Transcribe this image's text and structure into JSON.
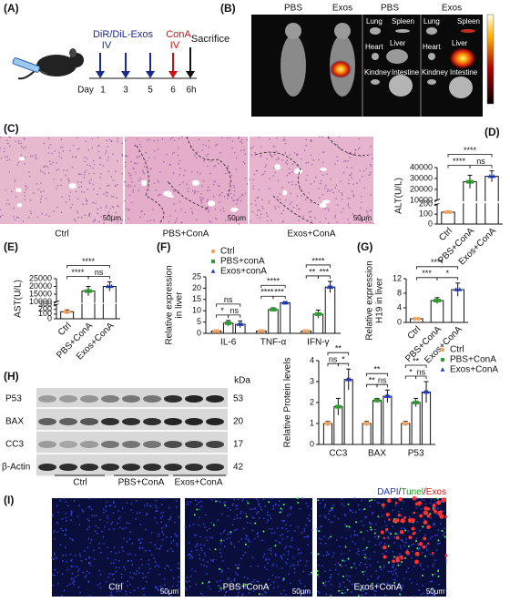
{
  "panels": {
    "A": {
      "label": "(A)",
      "treatment": "DiR/DiL-Exos",
      "route1": "IV",
      "drug": "ConA",
      "route2": "IV",
      "end": "Sacrifice",
      "day_label": "Day",
      "days": [
        "1",
        "3",
        "5",
        "6",
        "6h"
      ]
    },
    "B": {
      "label": "(B)",
      "columns": [
        "PBS",
        "Exos",
        "PBS",
        "Exos"
      ],
      "organs": [
        "Lung",
        "Spleen",
        "Heart",
        "Liver",
        "Kindney",
        "Intestine"
      ]
    },
    "C": {
      "label": "(C)",
      "images": [
        "Ctrl",
        "PBS+ConA",
        "Exos+ConA"
      ],
      "scale_bar": "50μm"
    },
    "D": {
      "label": "(D)"
    },
    "E": {
      "label": "(E)"
    },
    "F": {
      "label": "(F)"
    },
    "G": {
      "label": "(G)"
    },
    "H": {
      "label": "(H)",
      "unit": "kDa",
      "proteins": [
        {
          "name": "P53",
          "kda": 53
        },
        {
          "name": "BAX",
          "kda": 20
        },
        {
          "name": "CC3",
          "kda": 17
        },
        {
          "name": "β-Actin",
          "kda": 42
        }
      ],
      "groups": [
        "Ctrl",
        "PBS+ConA",
        "Exos+ConA"
      ]
    },
    "I": {
      "label": "(I)",
      "stain": [
        "DAPI",
        "/",
        "Tunel",
        "/",
        "Exos"
      ],
      "images": [
        "Ctrl",
        "PBS+ConA",
        "Exos+ConA"
      ],
      "scale_bar": "50μm"
    }
  },
  "chart_data": [
    {
      "type": "bar",
      "ylabel": [
        "ALT(U/L)"
      ],
      "categories": [
        "Ctrl",
        "PBS+ConA",
        "Exos+ConA"
      ],
      "values": [
        120,
        27000,
        32000
      ],
      "errors": [
        10,
        6000,
        5000
      ],
      "colors": [
        "#f4a460",
        "#2e9e2e",
        "#1e3cc8"
      ],
      "markers": [
        "circle",
        "square",
        "triangle"
      ],
      "ylim": [
        0,
        40000
      ],
      "ybreak": [
        200,
        10000
      ],
      "yticks": [
        0,
        100,
        200,
        10000,
        20000,
        30000,
        40000
      ],
      "annotations": [
        "****",
        "****",
        "ns"
      ]
    },
    {
      "type": "bar",
      "ylabel": [
        "AST(U/L)"
      ],
      "categories": [
        "Ctrl",
        "PBS+ConA",
        "Exos+ConA"
      ],
      "values": [
        150,
        17000,
        20000
      ],
      "errors": [
        40,
        3000,
        3000
      ],
      "colors": [
        "#f4a460",
        "#2e9e2e",
        "#1e3cc8"
      ],
      "markers": [
        "circle",
        "square",
        "triangle"
      ],
      "ylim": [
        0,
        25000
      ],
      "ybreak": [
        300,
        10000
      ],
      "yticks": [
        0,
        100,
        200,
        300,
        10000,
        15000,
        20000,
        25000
      ],
      "annotations": [
        "****",
        "****",
        "ns"
      ]
    },
    {
      "type": "grouped-bar",
      "ylabel": [
        "Relative expression",
        "in liver"
      ],
      "categories": [
        "IL-6",
        "TNF-α",
        "IFN-γ"
      ],
      "series": [
        {
          "name": "Ctrl",
          "color": "#f4a460",
          "marker": "circle",
          "values": [
            1,
            1,
            1
          ],
          "errors": [
            0.2,
            0.2,
            0.2
          ]
        },
        {
          "name": "PBS+conA",
          "color": "#2e9e2e",
          "marker": "square",
          "values": [
            4.5,
            10.5,
            8.5
          ],
          "errors": [
            1.2,
            0.8,
            1.8
          ]
        },
        {
          "name": "Exos+conA",
          "color": "#1e3cc8",
          "marker": "triangle",
          "values": [
            4,
            13.5,
            20.5
          ],
          "errors": [
            1.5,
            0.5,
            2.5
          ]
        }
      ],
      "ylim": [
        0,
        25
      ],
      "yticks": [
        0,
        5,
        10,
        15,
        20,
        25
      ],
      "legend": "upper-left",
      "annotations": [
        [
          "ns",
          "*",
          "ns"
        ],
        [
          "****",
          "****",
          "***"
        ],
        [
          "****",
          "**",
          "***"
        ]
      ]
    },
    {
      "type": "bar",
      "ylabel": [
        "Relative expression",
        "H19 in liver"
      ],
      "categories": [
        "Ctrl",
        "PBS+ConA",
        "Exos+ConA"
      ],
      "values": [
        1,
        6,
        9
      ],
      "errors": [
        0.1,
        0.8,
        1.8
      ],
      "colors": [
        "#f4a460",
        "#2e9e2e",
        "#1e3cc8"
      ],
      "markers": [
        "circle",
        "square",
        "triangle"
      ],
      "ylim": [
        0,
        12
      ],
      "yticks": [
        0,
        4,
        8,
        12
      ],
      "annotations": [
        "****",
        "***",
        "*"
      ]
    },
    {
      "type": "grouped-bar",
      "ylabel": [
        "Relative Protein levels"
      ],
      "categories": [
        "CC3",
        "BAX",
        "P53"
      ],
      "series": [
        {
          "name": "Ctrl",
          "color": "#f4a460",
          "marker": "circle",
          "values": [
            1,
            1,
            1
          ],
          "errors": [
            0.1,
            0.1,
            0.1
          ]
        },
        {
          "name": "PBS+ConA",
          "color": "#2e9e2e",
          "marker": "square",
          "values": [
            1.8,
            2.1,
            2
          ],
          "errors": [
            0.4,
            0.1,
            0.2
          ]
        },
        {
          "name": "Exos+ConA",
          "color": "#1e3cc8",
          "marker": "triangle",
          "values": [
            3.1,
            2.3,
            2.5
          ],
          "errors": [
            0.5,
            0.3,
            0.5
          ]
        }
      ],
      "ylim": [
        0,
        4
      ],
      "yticks": [
        0,
        1,
        2,
        3,
        4
      ],
      "legend": "upper-right",
      "annotations": [
        [
          "**",
          "ns",
          "*"
        ],
        [
          "**",
          "**",
          "ns"
        ],
        [
          "**",
          "*",
          "ns"
        ]
      ]
    }
  ]
}
